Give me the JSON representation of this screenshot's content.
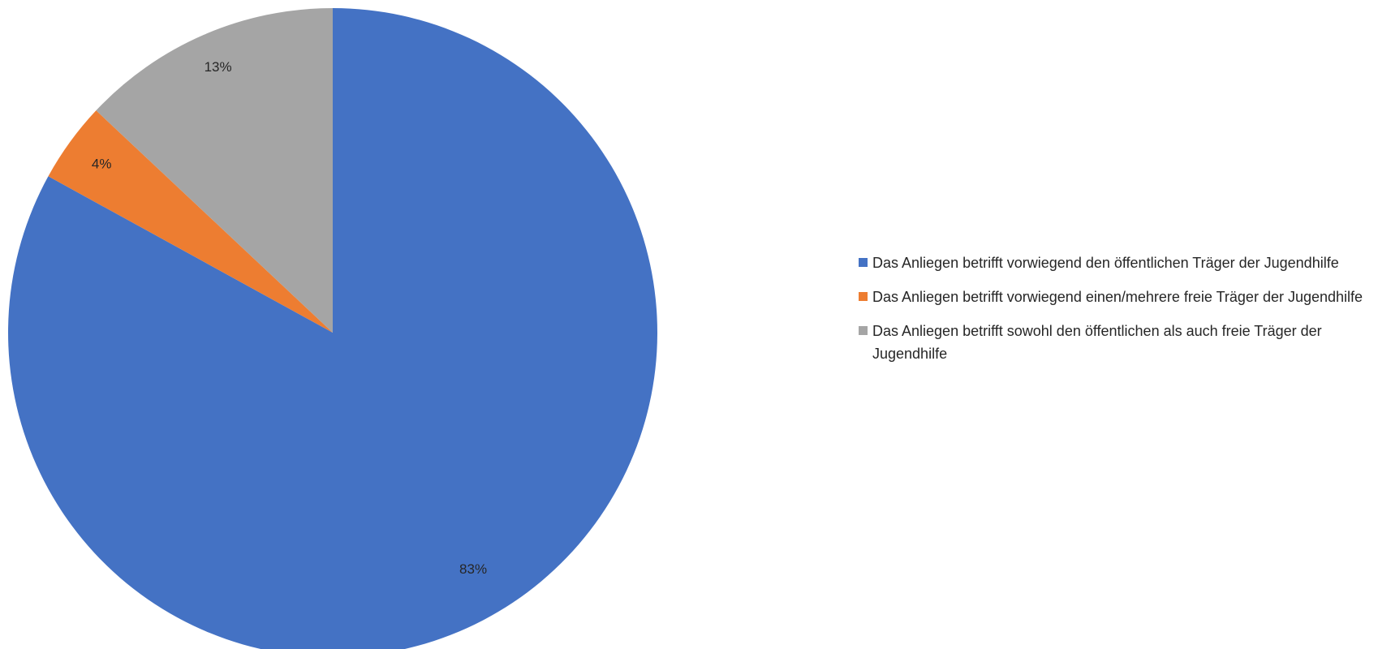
{
  "chart_data": {
    "type": "pie",
    "title": "",
    "categories": [
      "Das Anliegen betrifft vorwiegend den öffentlichen Träger der Jugendhilfe",
      "Das Anliegen betrifft vorwiegend einen/mehrere freie Träger der Jugendhilfe",
      "Das Anliegen betrifft sowohl den öffentlichen als auch freie Träger der Jugendhilfe"
    ],
    "values": [
      83,
      4,
      13
    ],
    "data_labels": [
      "83%",
      "4%",
      "13%"
    ],
    "colors": [
      "#4472C4",
      "#ED7D31",
      "#A5A5A5"
    ],
    "start_angle_deg": 0,
    "direction": "clockwise",
    "legend_position": "right"
  }
}
